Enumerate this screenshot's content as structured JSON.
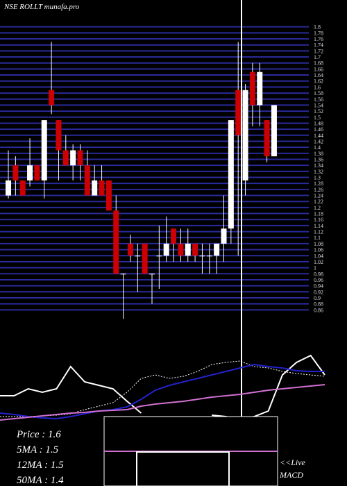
{
  "chart_data": [
    {
      "type": "candlestick",
      "title": "NSE ROLLT munafa.pro",
      "categories": [
        null,
        null,
        null,
        null,
        null,
        null,
        null,
        null,
        null,
        null,
        null,
        null,
        null,
        null,
        null,
        null,
        null,
        null,
        null,
        null,
        null,
        null,
        null,
        null,
        null,
        null,
        null,
        null,
        null,
        null,
        null,
        null,
        null,
        null,
        null,
        null,
        null,
        null
      ],
      "open": [
        1.24,
        1.34,
        1.29,
        1.29,
        1.34,
        1.29,
        1.59,
        1.49,
        1.39,
        1.34,
        1.39,
        1.34,
        1.24,
        1.29,
        1.29,
        1.19,
        0.98,
        1.08,
        1.04,
        1.08,
        0.98,
        1.04,
        1.04,
        1.13,
        1.08,
        1.04,
        1.08,
        1.04,
        1.04,
        1.04,
        1.08,
        1.13,
        1.59,
        1.29,
        1.65,
        1.54,
        1.49,
        1.37
      ],
      "high": [
        1.39,
        1.37,
        1.29,
        1.43,
        1.34,
        1.49,
        1.75,
        1.49,
        1.44,
        1.41,
        1.41,
        1.39,
        1.34,
        1.34,
        1.29,
        1.24,
        0.98,
        1.11,
        1.08,
        1.08,
        0.98,
        1.14,
        1.17,
        1.13,
        1.13,
        1.13,
        1.08,
        1.08,
        1.08,
        1.08,
        1.24,
        1.49,
        1.75,
        1.61,
        1.68,
        1.68,
        1.49,
        1.54
      ],
      "low": [
        1.23,
        1.24,
        1.24,
        1.27,
        1.29,
        1.23,
        1.51,
        1.29,
        1.34,
        1.29,
        1.29,
        1.24,
        1.24,
        1.24,
        1.19,
        0.98,
        0.83,
        1.02,
        0.92,
        0.98,
        0.88,
        0.93,
        1.02,
        1.02,
        1.02,
        1.02,
        1.02,
        0.98,
        0.98,
        0.98,
        1.02,
        1.08,
        1.04,
        1.24,
        1.47,
        1.47,
        1.35,
        1.37
      ],
      "close": [
        1.29,
        1.29,
        1.24,
        1.34,
        1.29,
        1.49,
        1.54,
        1.39,
        1.34,
        1.39,
        1.34,
        1.24,
        1.29,
        1.24,
        1.19,
        0.98,
        0.98,
        1.04,
        1.04,
        0.98,
        0.98,
        1.04,
        1.08,
        1.08,
        1.04,
        1.08,
        1.04,
        1.04,
        1.04,
        1.08,
        1.13,
        1.49,
        1.44,
        1.59,
        1.54,
        1.65,
        1.37,
        1.54
      ],
      "up_color": "#ffffff",
      "down_color": "#cc0000",
      "grid_color": "#2a2a9a",
      "ylim": [
        0.84,
        1.82
      ],
      "yticks": [
        1.8,
        1.78,
        1.76,
        1.74,
        1.72,
        1.7,
        1.68,
        1.66,
        1.64,
        1.62,
        1.6,
        1.58,
        1.56,
        1.54,
        1.52,
        1.5,
        1.48,
        1.46,
        1.44,
        1.42,
        1.4,
        1.38,
        1.36,
        1.34,
        1.32,
        1.3,
        1.28,
        1.26,
        1.24,
        1.22,
        1.2,
        1.18,
        1.16,
        1.14,
        1.12,
        1.1,
        1.08,
        1.06,
        1.04,
        1.02,
        1,
        0.98,
        0.96,
        0.94,
        0.92,
        0.9,
        0.88,
        0.86
      ],
      "grid": true
    },
    {
      "type": "line",
      "x": [
        0,
        20,
        40,
        60,
        80,
        100,
        120,
        140,
        160,
        180,
        200,
        220,
        240,
        260,
        280,
        300,
        320,
        340,
        360,
        380,
        400,
        420,
        440,
        460
      ],
      "xlim": [
        0,
        460
      ],
      "ylim": [
        0,
        220
      ],
      "series": [
        {
          "color": "#ffffff",
          "dash": false,
          "values": [
            130,
            130,
            140,
            135,
            140,
            172,
            150,
            145,
            140,
            122,
            105,
            null,
            null,
            null,
            null,
            102,
            100,
            95,
            100,
            108,
            160,
            178,
            188,
            160
          ]
        },
        {
          "color": "#ffffff",
          "dash": true,
          "values": [
            100,
            100,
            100,
            101,
            102,
            104,
            110,
            115,
            120,
            135,
            155,
            160,
            155,
            158,
            165,
            175,
            178,
            180,
            172,
            170,
            165,
            162,
            160,
            158
          ]
        },
        {
          "color": "#2222cc",
          "dash": false,
          "values": [
            105,
            103,
            100,
            98,
            97,
            100,
            104,
            108,
            110,
            114,
            125,
            138,
            145,
            150,
            155,
            160,
            165,
            170,
            175,
            172,
            170,
            166,
            165,
            165
          ]
        },
        {
          "color": "#d070d0",
          "dash": false,
          "values": [
            95,
            97,
            99,
            101,
            103,
            105,
            106,
            108,
            109,
            110,
            115,
            118,
            120,
            122,
            125,
            128,
            130,
            132,
            135,
            138,
            140,
            142,
            144,
            146
          ]
        }
      ],
      "info": [
        "Price  : 1.6",
        "5MA : 1.5",
        "12MA : 1.5",
        "50MA : 1.4"
      ],
      "macd_label": [
        "<<Live",
        "MACD"
      ]
    }
  ]
}
